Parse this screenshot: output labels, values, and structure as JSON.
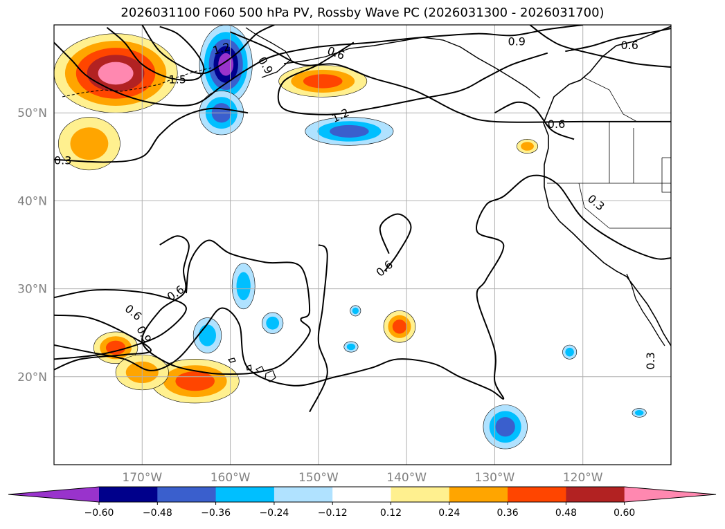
{
  "title": "2026031100 F060 500 hPa PV, Rossby Wave PC (2026031300 - 2026031700)",
  "map": {
    "lon_range": [
      -180,
      -110
    ],
    "lat_range": [
      10,
      60
    ],
    "lon_ticks": [
      {
        "value": -170,
        "label": "170°W"
      },
      {
        "value": -160,
        "label": "160°W"
      },
      {
        "value": -150,
        "label": "150°W"
      },
      {
        "value": -140,
        "label": "140°W"
      },
      {
        "value": -130,
        "label": "130°W"
      },
      {
        "value": -120,
        "label": "120°W"
      }
    ],
    "lat_ticks": [
      {
        "value": 50,
        "label": "50°N"
      },
      {
        "value": 40,
        "label": "40°N"
      },
      {
        "value": 30,
        "label": "30°N"
      },
      {
        "value": 20,
        "label": "20°N"
      }
    ],
    "grid": true,
    "contour_labels": [
      {
        "text": "1.2",
        "lon": -161,
        "lat": 57.3,
        "rot": -15
      },
      {
        "text": "1.5",
        "lon": -166,
        "lat": 53.8,
        "rot": 0
      },
      {
        "text": "0.9",
        "lon": -156,
        "lat": 55.4,
        "rot": 60
      },
      {
        "text": "0.6",
        "lon": -148,
        "lat": 56.8,
        "rot": 20
      },
      {
        "text": "0.9",
        "lon": -127.5,
        "lat": 58.1,
        "rot": 0
      },
      {
        "text": "0.6",
        "lon": -114.7,
        "lat": 57.7,
        "rot": 0
      },
      {
        "text": "1.2",
        "lon": -147.5,
        "lat": 49.7,
        "rot": -25
      },
      {
        "text": "0.6",
        "lon": -123,
        "lat": 48.7,
        "rot": 0
      },
      {
        "text": "0.3",
        "lon": -179,
        "lat": 44.6,
        "rot": 0
      },
      {
        "text": "0.3",
        "lon": -118.5,
        "lat": 39.8,
        "rot": 40
      },
      {
        "text": "0.6",
        "lon": -142.5,
        "lat": 32.3,
        "rot": -40
      },
      {
        "text": "0.6",
        "lon": -166.2,
        "lat": 29.5,
        "rot": -35
      },
      {
        "text": "0.6",
        "lon": -171,
        "lat": 27.3,
        "rot": 40
      },
      {
        "text": "0.9",
        "lon": -169.8,
        "lat": 24.8,
        "rot": 60
      },
      {
        "text": "0.3",
        "lon": -112.3,
        "lat": 21.8,
        "rot": -90
      }
    ]
  },
  "colorbar": {
    "colors": [
      "#9933cc",
      "#00008b",
      "#3a5fcd",
      "#00bfff",
      "#b0e2ff",
      "#ffffff",
      "#fff08f",
      "#ffa500",
      "#ff4500",
      "#b22222",
      "#ff88b0"
    ],
    "tick_labels": [
      "−0.60",
      "−0.48",
      "−0.36",
      "−0.24",
      "−0.12",
      "0.12",
      "0.24",
      "0.36",
      "0.48",
      "0.60"
    ]
  },
  "anomalies": [
    {
      "lon": -173,
      "lat": 54.5,
      "rx": 7,
      "ry": 4.5,
      "sign": 1,
      "level": 5
    },
    {
      "lon": -176,
      "lat": 46.5,
      "rx": 3.5,
      "ry": 3,
      "sign": 1,
      "level": 2
    },
    {
      "lon": -160.5,
      "lat": 55.5,
      "rx": 3,
      "ry": 4.5,
      "sign": -1,
      "level": 5
    },
    {
      "lon": -161,
      "lat": 50,
      "rx": 2.5,
      "ry": 2.5,
      "sign": -1,
      "level": 3
    },
    {
      "lon": -149.5,
      "lat": 53.6,
      "rx": 5,
      "ry": 1.8,
      "sign": 1,
      "level": 3
    },
    {
      "lon": -146.5,
      "lat": 47.9,
      "rx": 5,
      "ry": 1.6,
      "sign": -1,
      "level": 3
    },
    {
      "lon": -173,
      "lat": 23.3,
      "rx": 2.5,
      "ry": 1.8,
      "sign": 1,
      "level": 3
    },
    {
      "lon": -164,
      "lat": 19.5,
      "rx": 5,
      "ry": 2.5,
      "sign": 1,
      "level": 3
    },
    {
      "lon": -170,
      "lat": 20.5,
      "rx": 3,
      "ry": 2,
      "sign": 1,
      "level": 2
    },
    {
      "lon": -162.6,
      "lat": 24.7,
      "rx": 1.6,
      "ry": 2,
      "sign": -1,
      "level": 2
    },
    {
      "lon": -158.5,
      "lat": 30.3,
      "rx": 1.3,
      "ry": 2.6,
      "sign": -1,
      "level": 2
    },
    {
      "lon": -155.2,
      "lat": 26.1,
      "rx": 1.2,
      "ry": 1.2,
      "sign": -1,
      "level": 2
    },
    {
      "lon": -145.8,
      "lat": 27.5,
      "rx": 0.6,
      "ry": 0.6,
      "sign": -1,
      "level": 2
    },
    {
      "lon": -146.3,
      "lat": 23.4,
      "rx": 0.8,
      "ry": 0.6,
      "sign": -1,
      "level": 2
    },
    {
      "lon": -140.8,
      "lat": 25.7,
      "rx": 1.8,
      "ry": 1.8,
      "sign": 1,
      "level": 3
    },
    {
      "lon": -126.3,
      "lat": 46.2,
      "rx": 1.2,
      "ry": 0.8,
      "sign": 1,
      "level": 2
    },
    {
      "lon": -128.8,
      "lat": 14.3,
      "rx": 2.5,
      "ry": 2.5,
      "sign": -1,
      "level": 3
    },
    {
      "lon": -121.5,
      "lat": 22.8,
      "rx": 0.8,
      "ry": 0.8,
      "sign": -1,
      "level": 2
    },
    {
      "lon": -113.6,
      "lat": 15.9,
      "rx": 0.8,
      "ry": 0.5,
      "sign": -1,
      "level": 2
    }
  ],
  "contours": [
    [
      [
        -180,
        58
      ],
      [
        -178,
        56
      ],
      [
        -176,
        54
      ],
      [
        -172,
        52
      ],
      [
        -168,
        51
      ],
      [
        -164,
        51
      ],
      [
        -161,
        53
      ],
      [
        -158,
        55
      ],
      [
        -155,
        56.5
      ],
      [
        -150,
        57.5
      ],
      [
        -144,
        58
      ],
      [
        -138,
        58.6
      ],
      [
        -132,
        59
      ],
      [
        -128,
        58.8
      ],
      [
        -124,
        59.5
      ],
      [
        -120,
        60
      ]
    ],
    [
      [
        -174,
        59.7
      ],
      [
        -172,
        58
      ],
      [
        -170,
        55.5
      ],
      [
        -167,
        54
      ],
      [
        -164,
        53.8
      ],
      [
        -163,
        55
      ],
      [
        -164,
        57
      ],
      [
        -166,
        59
      ],
      [
        -168,
        59.8
      ]
    ],
    [
      [
        -170,
        60
      ],
      [
        -168,
        57
      ],
      [
        -165,
        55
      ],
      [
        -163,
        54.5
      ],
      [
        -161,
        55.5
      ],
      [
        -159,
        57
      ],
      [
        -157,
        59
      ],
      [
        -155,
        60
      ]
    ],
    [
      [
        -160,
        59.2
      ],
      [
        -156,
        57.5
      ],
      [
        -152,
        55.5
      ],
      [
        -148,
        55.5
      ],
      [
        -144,
        54
      ],
      [
        -139,
        52.5
      ],
      [
        -134,
        50
      ],
      [
        -130,
        49
      ],
      [
        -120,
        49
      ],
      [
        -110,
        49
      ]
    ],
    [
      [
        -146,
        58
      ],
      [
        -150,
        55.5
      ],
      [
        -154,
        53.5
      ],
      [
        -154,
        50.5
      ],
      [
        -149,
        49.8
      ],
      [
        -144,
        50.5
      ],
      [
        -139,
        51.5
      ],
      [
        -134,
        52.5
      ],
      [
        -131,
        54
      ],
      [
        -128,
        55.5
      ],
      [
        -124,
        56.8
      ]
    ],
    [
      [
        -180,
        44.7
      ],
      [
        -174,
        44.4
      ],
      [
        -170,
        45
      ],
      [
        -168,
        47.5
      ],
      [
        -165.5,
        49.5
      ],
      [
        -162,
        50.5
      ],
      [
        -158,
        50
      ]
    ],
    [
      [
        -122,
        57
      ],
      [
        -119,
        57.6
      ],
      [
        -116,
        58.5
      ],
      [
        -112,
        59.2
      ],
      [
        -110,
        59.6
      ]
    ],
    [
      [
        -126,
        60
      ],
      [
        -124,
        58.5
      ],
      [
        -122,
        57.5
      ],
      [
        -118,
        56.5
      ],
      [
        -114,
        55.6
      ],
      [
        -110,
        55.2
      ]
    ],
    [
      [
        -180,
        29
      ],
      [
        -176,
        29.8
      ],
      [
        -172,
        29.8
      ],
      [
        -168,
        29.2
      ],
      [
        -165,
        27.8
      ],
      [
        -167.5,
        25
      ],
      [
        -171,
        23.5
      ],
      [
        -175,
        22.5
      ],
      [
        -180,
        22
      ]
    ],
    [
      [
        -180,
        27
      ],
      [
        -176,
        26.7
      ],
      [
        -172,
        25
      ],
      [
        -169,
        23
      ],
      [
        -172,
        22.5
      ],
      [
        -177,
        22
      ],
      [
        -180,
        20.8
      ]
    ],
    [
      [
        -180,
        23.6
      ],
      [
        -176,
        22.8
      ],
      [
        -172,
        22
      ],
      [
        -169,
        20.7
      ],
      [
        -166,
        22
      ],
      [
        -163,
        25.5
      ],
      [
        -161,
        27.8
      ],
      [
        -159,
        26
      ],
      [
        -158,
        21
      ],
      [
        -153,
        19
      ],
      [
        -148,
        20
      ],
      [
        -144,
        21
      ],
      [
        -141,
        22
      ],
      [
        -137,
        21.5
      ],
      [
        -134,
        20
      ],
      [
        -130.5,
        18.5
      ],
      [
        -129,
        17.5
      ],
      [
        -130,
        19.5
      ],
      [
        -130,
        23
      ],
      [
        -132,
        29
      ],
      [
        -131,
        31
      ],
      [
        -129,
        35
      ],
      [
        -132,
        36.5
      ],
      [
        -131,
        39.5
      ],
      [
        -129,
        40.5
      ],
      [
        -126,
        42.8
      ],
      [
        -123,
        42
      ],
      [
        -120,
        38
      ],
      [
        -116,
        35.2
      ],
      [
        -112,
        33.5
      ],
      [
        -110,
        33.5
      ]
    ],
    [
      [
        -165,
        29.5
      ],
      [
        -164.5,
        33.2
      ],
      [
        -162.5,
        35.5
      ],
      [
        -160,
        34
      ],
      [
        -156,
        33
      ],
      [
        -152,
        32.5
      ],
      [
        -151,
        27.5
      ],
      [
        -152,
        26.5
      ],
      [
        -151,
        25
      ],
      [
        -154,
        21.5
      ],
      [
        -157,
        20.5
      ],
      [
        -160,
        20.3
      ],
      [
        -163,
        20.5
      ],
      [
        -167,
        21.5
      ],
      [
        -170,
        24
      ],
      [
        -168,
        27.5
      ],
      [
        -165.2,
        29.6
      ],
      [
        -165.3,
        32.2
      ],
      [
        -164.7,
        35
      ],
      [
        -166,
        36
      ],
      [
        -168,
        35
      ]
    ],
    [
      [
        -150,
        35
      ],
      [
        -149,
        34
      ],
      [
        -149.5,
        28
      ],
      [
        -150,
        24
      ],
      [
        -149,
        20.3
      ],
      [
        -151,
        16
      ]
    ],
    [
      [
        -142,
        34
      ],
      [
        -143,
        37
      ],
      [
        -141,
        38.5
      ],
      [
        -139.5,
        37
      ],
      [
        -141,
        34
      ],
      [
        -142.5,
        32
      ]
    ],
    [
      [
        -130,
        50
      ],
      [
        -127.5,
        51.2
      ],
      [
        -125.5,
        50.5
      ],
      [
        -123.5,
        48
      ],
      [
        -121,
        47
      ]
    ]
  ]
}
